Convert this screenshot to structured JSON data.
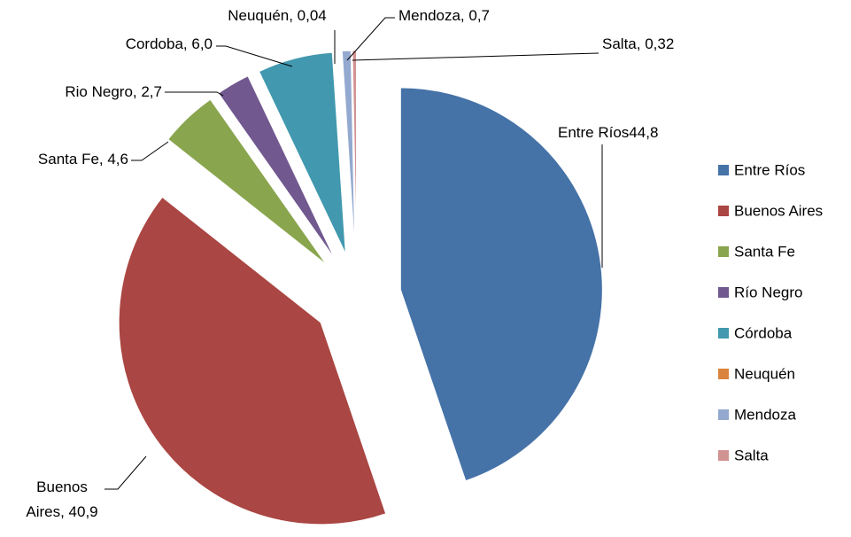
{
  "chart_data": {
    "type": "pie",
    "categories": [
      "Entre Ríos",
      "Buenos Aires",
      "Santa Fe",
      "Río Negro",
      "Córdoba",
      "Neuquén",
      "Mendoza",
      "Salta"
    ],
    "values": [
      44.8,
      40.9,
      4.6,
      2.7,
      6.0,
      0.04,
      0.7,
      0.32
    ],
    "value_labels": [
      "Entre Ríos44,8",
      "Buenos Aires, 40,9",
      "Santa Fe, 4,6",
      "Rio Negro, 2,7",
      "Cordoba, 6,0",
      "Neuquén, 0,04",
      "Mendoza, 0,7",
      "Salta, 0,32"
    ],
    "colors": [
      "#4572a7",
      "#aa4643",
      "#89a54e",
      "#71588f",
      "#4198af",
      "#db843d",
      "#93a9cf",
      "#d19392"
    ],
    "legend": "right"
  }
}
